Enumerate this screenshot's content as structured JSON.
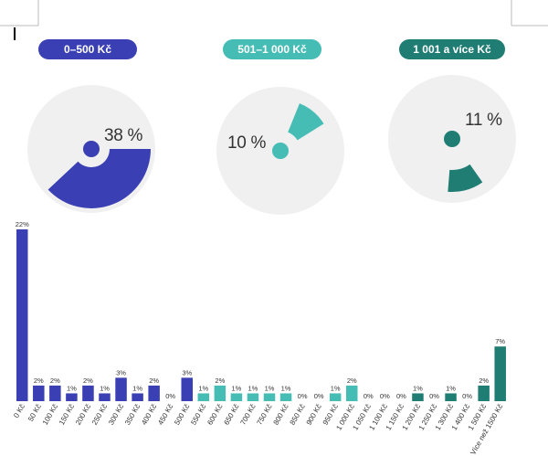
{
  "groups": [
    {
      "label": "0–500 Kč",
      "percent": 38,
      "percent_label": "38 %",
      "color": "#3a3fb3"
    },
    {
      "label": "501–1 000 Kč",
      "percent": 10,
      "percent_label": "10 %",
      "color": "#45bdb5"
    },
    {
      "label": "1 001 a více Kč",
      "percent": 11,
      "percent_label": "11 %",
      "color": "#1f7d73"
    }
  ],
  "colors": {
    "pie_background": "#f0f0f0"
  },
  "chart_data": {
    "type": "bar",
    "categories": [
      "0 Kč",
      "50 Kč",
      "100 Kč",
      "150 Kč",
      "200 Kč",
      "250 Kč",
      "300 Kč",
      "350 Kč",
      "400 Kč",
      "450 Kč",
      "500 Kč",
      "550 Kč",
      "600 Kč",
      "650 Kč",
      "700 Kč",
      "750 Kč",
      "800 Kč",
      "850 Kč",
      "900 Kč",
      "950 Kč",
      "1 000 Kč",
      "1 050 Kč",
      "1 100 Kč",
      "1 150 Kč",
      "1 200 Kč",
      "1 250 Kč",
      "1 300 Kč",
      "1 400 Kč",
      "1 500 Kč",
      "Více než 1500 Kč"
    ],
    "values": [
      22,
      2,
      2,
      1,
      2,
      1,
      3,
      1,
      2,
      0,
      3,
      1,
      2,
      1,
      1,
      1,
      1,
      0,
      0,
      1,
      2,
      0,
      0,
      0,
      1,
      0,
      1,
      0,
      2,
      7
    ],
    "value_labels": [
      "22%",
      "2%",
      "2%",
      "1%",
      "2%",
      "1%",
      "3%",
      "1%",
      "2%",
      "0%",
      "3%",
      "1%",
      "2%",
      "1%",
      "1%",
      "1%",
      "1%",
      "0%",
      "0%",
      "1%",
      "2%",
      "0%",
      "0%",
      "0%",
      "1%",
      "0%",
      "1%",
      "0%",
      "2%",
      "7%"
    ],
    "color_groups": [
      0,
      0,
      0,
      0,
      0,
      0,
      0,
      0,
      0,
      0,
      0,
      1,
      1,
      1,
      1,
      1,
      1,
      1,
      1,
      1,
      1,
      2,
      2,
      2,
      2,
      2,
      2,
      2,
      2,
      2
    ],
    "ylim": [
      0,
      22
    ],
    "grid": false,
    "legend": "none"
  }
}
